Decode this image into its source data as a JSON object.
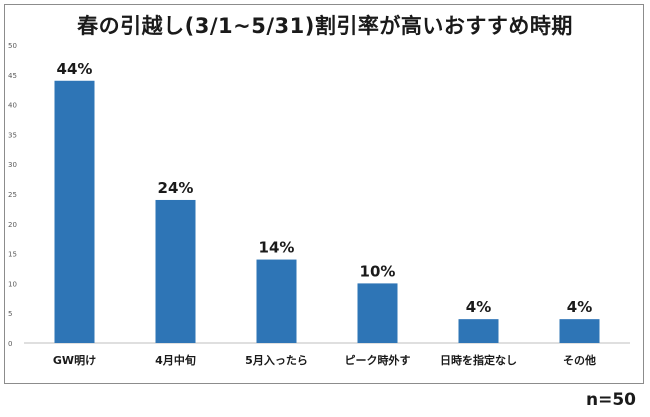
{
  "chart_data": {
    "type": "bar",
    "title": "春の引越し(3/1~5/31)割引率が高いおすすめ時期",
    "categories": [
      "GW明け",
      "4月中旬",
      "5月入ったら",
      "ピーク時外す",
      "日時を指定なし",
      "その他"
    ],
    "values": [
      44,
      24,
      14,
      10,
      4,
      4
    ],
    "data_labels": [
      "44%",
      "24%",
      "14%",
      "10%",
      "4%",
      "4%"
    ],
    "ylim": [
      0,
      50
    ],
    "yticks": [
      0,
      5,
      10,
      15,
      20,
      25,
      30,
      35,
      40,
      45,
      50
    ],
    "xlabel": "",
    "ylabel": "",
    "grid": false,
    "bar_color": "#2e75b6",
    "note": "n=50"
  }
}
